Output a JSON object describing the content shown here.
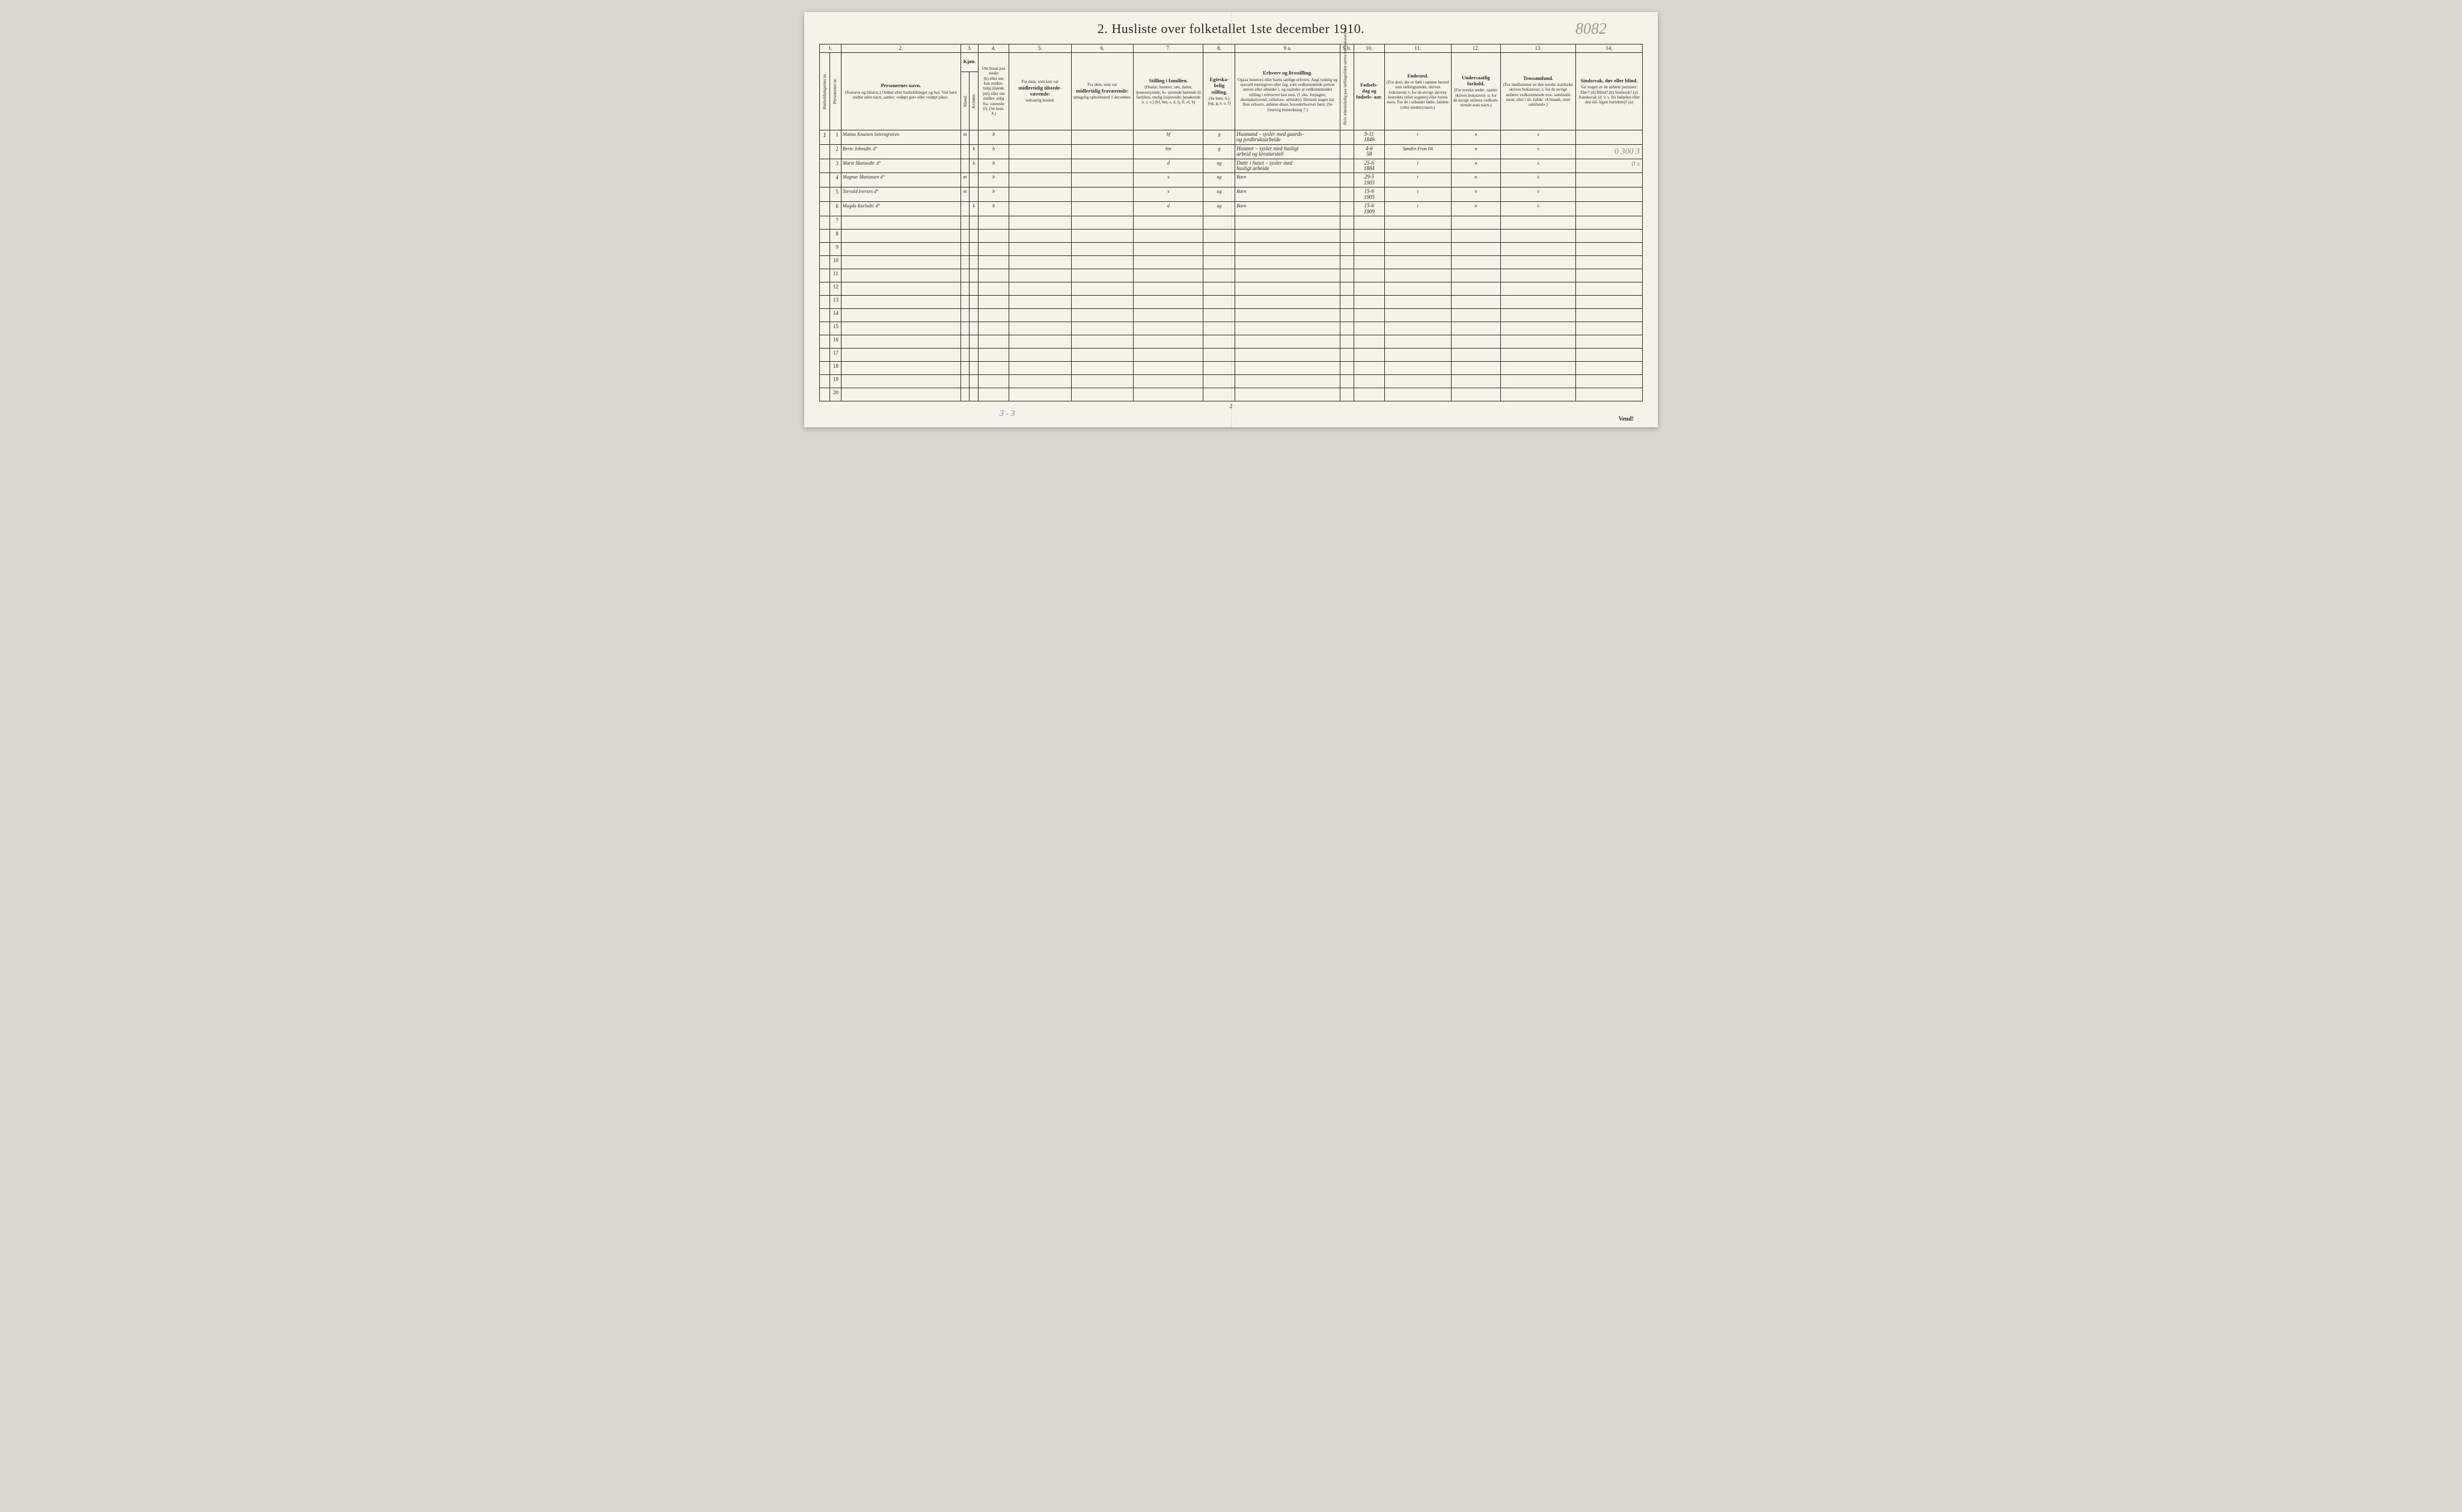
{
  "title": "2.  Husliste over folketallet 1ste december 1910.",
  "pencil_note": "8082",
  "margin_right_1": "0  300  3",
  "margin_right_2": "0    s",
  "footer_note": "3 - 3",
  "page_num": "2",
  "vend": "Vend!",
  "column_numbers": [
    "1.",
    "2.",
    "3.",
    "4.",
    "5.",
    "6.",
    "7.",
    "8.",
    "9 a.",
    "9 b.",
    "10.",
    "11.",
    "12.",
    "13.",
    "14."
  ],
  "headers": {
    "col1_vert": "Husholdningernes nr.",
    "col2_vert": "Personernes nr.",
    "col3_main": "Personernes navn.",
    "col3_sub": "(Fornavn og tilnavn.)\nOrdnet efter husholdninger og hus.\nVed barn endnu uden navn, sættes: «udøpt gut»\neller «udøpt pike».",
    "col4_main": "Kjøn.",
    "col4a_vert": "Mænd.",
    "col4b_vert": "Kvinder.",
    "col4_sub": "m.  k.",
    "col5_main": "Om bosat\npaa stedet",
    "col5_sub": "(b) eller om\nkun midler-\ntidig tilstede\n(mt) eller\nom midler-\ntidig fra-\nværende (f).\n(Se bem. 4.)",
    "col6_main": "For dem, som kun var",
    "col6_main2": "midlertidig tilstede-\nværende:",
    "col6_sub": "sedvanlig bosted.",
    "col7_main": "For dem, som var",
    "col7_main2": "midlertidig\nfraværende:",
    "col7_sub": "antagelig opholdssted\n1 december.",
    "col8_main": "Stilling i familien.",
    "col8_sub": "(Husfar, husmor, søn,\ndatter, tjenestetyende, lo-\nsjerende hørende til familien,\nenslig losjerende, besøkende\no. s. v.)\n(hf, hm, s, d, tj, fl,\nel, b)",
    "col9_main": "Egteska-\nbelig\nstilling.",
    "col9_sub": "(Se bem. 6.)\n(ug, g,\ne, s, f)",
    "col10a_main": "Erhverv og livsstilling.",
    "col10a_sub": "Ogsaa husmors eller barns særlige erhverv.\nAngi tydelig og specielt næringsvei eller fag, som\nvedkommende person utøver eller arbeider i,\nog saaledes at vedkommendes stilling i erhvervet kan\nsees, (f. eks. forpagter, skomakersvend, cellulose-\narbeider). Dersom nogen har flere erhverv,\nanføres disse, hovederhvervet først.\n(Se forøvrig bemerkning 7.)",
    "col10b_vert": "Hvis arbeidsledig\npaa tællingstiden sættes\nher bokstaven l.",
    "col11_main": "Fødsels-\ndag\nog\nfødsels-\naar.",
    "col12_main": "Fødested.",
    "col12_sub": "(For dem, der er født\ni samme herred som\ntællingsstedet,\nskrives bokstaven: t;\nfor de øvrige skrives\nherredets (eller sognets)\neller byens navn.\nFor de i utlandet fødte:\nlandets (eller stedets)\nnavn.)",
    "col13_main": "Undersaatlig\nforhold.",
    "col13_sub": "(For norske under-\nsaatter skrives\nbokstaven: n;\nfor de øvrige\nanføres vedkom-\nmende stats navn.)",
    "col14_main": "Trossamfund.",
    "col14_sub": "(For medlemmer av\nden norske statskirke\nskrives bokstaven: s;\nfor de øvrige anføres\nvedkommende tros-\nsamfunds navn, eller i til-\nfælde: «Uttraadt, intet\nsamfund».)",
    "col15_main": "Sindssvak, døv\neller blind.",
    "col15_sub": "Var nogen av de anførte\npersoner:\nDøv?         (d)\nBlind?       (b)\nSindssyk?  (s)\nAandssvak (d. v. s. fra\nfødselen eller den tid-\nligste barndom)?  (a)"
  },
  "rows": [
    {
      "hh": "1",
      "pn": "1",
      "name": "Matias Knutsen Setersgraven",
      "m": "m",
      "k": "",
      "res": "b",
      "c6": "",
      "c7": "",
      "fam": "hf",
      "marr": "g",
      "occ": "Husmand – sysler med gaards-\nog jordbruksarbeide",
      "wl": "",
      "birth": "9-11\n1846",
      "bplace": "t",
      "nat": "n",
      "rel": "s",
      "dis": ""
    },
    {
      "hh": "",
      "pn": "2",
      "name": "Berte Johnsdtr.           d°",
      "m": "",
      "k": "k",
      "res": "b",
      "c6": "",
      "c7": "",
      "fam": "hm",
      "marr": "g",
      "occ": "Husmor – sysler med husligt\narbeid og kreaturstell",
      "wl": "",
      "birth": "4-6\n58",
      "bplace": "Søndre Fron 04",
      "nat": "n",
      "rel": "s",
      "dis": ""
    },
    {
      "hh": "",
      "pn": "3",
      "name": "Marie Matiasdtr.         d°",
      "m": "",
      "k": "k",
      "res": "b",
      "c6": "",
      "c7": "",
      "fam": "d",
      "marr": "ug",
      "occ": "Dattr i huset – sysler med\nhusligt arbeide",
      "wl": "",
      "birth": "25-6\n1884",
      "bplace": "t",
      "nat": "n",
      "rel": "s",
      "dis": ""
    },
    {
      "hh": "",
      "pn": "4",
      "name": "Magnar Matiassen       d°",
      "m": "m",
      "k": "",
      "res": "b",
      "c6": "",
      "c7": "",
      "fam": "s",
      "marr": "ug",
      "occ": "Barn",
      "wl": "",
      "birth": "29-5\n1903",
      "bplace": "t",
      "nat": "n",
      "rel": "s",
      "dis": ""
    },
    {
      "hh": "",
      "pn": "5",
      "name": "Torvald Iversen            d°",
      "m": "m",
      "k": "",
      "res": "b",
      "c6": "",
      "c7": "",
      "fam": "s",
      "marr": "ug",
      "occ": "Barn",
      "wl": "",
      "birth": "15-6\n1905",
      "bplace": "t",
      "nat": "n",
      "rel": "s",
      "dis": ""
    },
    {
      "hh": "",
      "pn": "6",
      "name": "Magda Karlsdtr.           d°",
      "m": "",
      "k": "k",
      "res": "b",
      "c6": "",
      "c7": "",
      "fam": "d",
      "marr": "ug",
      "occ": "Barn",
      "wl": "",
      "birth": "15-6\n1909",
      "bplace": "t",
      "nat": "n",
      "rel": "s",
      "dis": ""
    },
    {
      "hh": "",
      "pn": "7",
      "name": "",
      "m": "",
      "k": "",
      "res": "",
      "c6": "",
      "c7": "",
      "fam": "",
      "marr": "",
      "occ": "",
      "wl": "",
      "birth": "",
      "bplace": "",
      "nat": "",
      "rel": "",
      "dis": ""
    },
    {
      "hh": "",
      "pn": "8",
      "name": "",
      "m": "",
      "k": "",
      "res": "",
      "c6": "",
      "c7": "",
      "fam": "",
      "marr": "",
      "occ": "",
      "wl": "",
      "birth": "",
      "bplace": "",
      "nat": "",
      "rel": "",
      "dis": ""
    },
    {
      "hh": "",
      "pn": "9",
      "name": "",
      "m": "",
      "k": "",
      "res": "",
      "c6": "",
      "c7": "",
      "fam": "",
      "marr": "",
      "occ": "",
      "wl": "",
      "birth": "",
      "bplace": "",
      "nat": "",
      "rel": "",
      "dis": ""
    },
    {
      "hh": "",
      "pn": "10",
      "name": "",
      "m": "",
      "k": "",
      "res": "",
      "c6": "",
      "c7": "",
      "fam": "",
      "marr": "",
      "occ": "",
      "wl": "",
      "birth": "",
      "bplace": "",
      "nat": "",
      "rel": "",
      "dis": ""
    },
    {
      "hh": "",
      "pn": "11",
      "name": "",
      "m": "",
      "k": "",
      "res": "",
      "c6": "",
      "c7": "",
      "fam": "",
      "marr": "",
      "occ": "",
      "wl": "",
      "birth": "",
      "bplace": "",
      "nat": "",
      "rel": "",
      "dis": ""
    },
    {
      "hh": "",
      "pn": "12",
      "name": "",
      "m": "",
      "k": "",
      "res": "",
      "c6": "",
      "c7": "",
      "fam": "",
      "marr": "",
      "occ": "",
      "wl": "",
      "birth": "",
      "bplace": "",
      "nat": "",
      "rel": "",
      "dis": ""
    },
    {
      "hh": "",
      "pn": "13",
      "name": "",
      "m": "",
      "k": "",
      "res": "",
      "c6": "",
      "c7": "",
      "fam": "",
      "marr": "",
      "occ": "",
      "wl": "",
      "birth": "",
      "bplace": "",
      "nat": "",
      "rel": "",
      "dis": ""
    },
    {
      "hh": "",
      "pn": "14",
      "name": "",
      "m": "",
      "k": "",
      "res": "",
      "c6": "",
      "c7": "",
      "fam": "",
      "marr": "",
      "occ": "",
      "wl": "",
      "birth": "",
      "bplace": "",
      "nat": "",
      "rel": "",
      "dis": ""
    },
    {
      "hh": "",
      "pn": "15",
      "name": "",
      "m": "",
      "k": "",
      "res": "",
      "c6": "",
      "c7": "",
      "fam": "",
      "marr": "",
      "occ": "",
      "wl": "",
      "birth": "",
      "bplace": "",
      "nat": "",
      "rel": "",
      "dis": ""
    },
    {
      "hh": "",
      "pn": "16",
      "name": "",
      "m": "",
      "k": "",
      "res": "",
      "c6": "",
      "c7": "",
      "fam": "",
      "marr": "",
      "occ": "",
      "wl": "",
      "birth": "",
      "bplace": "",
      "nat": "",
      "rel": "",
      "dis": ""
    },
    {
      "hh": "",
      "pn": "17",
      "name": "",
      "m": "",
      "k": "",
      "res": "",
      "c6": "",
      "c7": "",
      "fam": "",
      "marr": "",
      "occ": "",
      "wl": "",
      "birth": "",
      "bplace": "",
      "nat": "",
      "rel": "",
      "dis": ""
    },
    {
      "hh": "",
      "pn": "18",
      "name": "",
      "m": "",
      "k": "",
      "res": "",
      "c6": "",
      "c7": "",
      "fam": "",
      "marr": "",
      "occ": "",
      "wl": "",
      "birth": "",
      "bplace": "",
      "nat": "",
      "rel": "",
      "dis": ""
    },
    {
      "hh": "",
      "pn": "19",
      "name": "",
      "m": "",
      "k": "",
      "res": "",
      "c6": "",
      "c7": "",
      "fam": "",
      "marr": "",
      "occ": "",
      "wl": "",
      "birth": "",
      "bplace": "",
      "nat": "",
      "rel": "",
      "dis": ""
    },
    {
      "hh": "",
      "pn": "20",
      "name": "",
      "m": "",
      "k": "",
      "res": "",
      "c6": "",
      "c7": "",
      "fam": "",
      "marr": "",
      "occ": "",
      "wl": "",
      "birth": "",
      "bplace": "",
      "nat": "",
      "rel": "",
      "dis": ""
    }
  ]
}
